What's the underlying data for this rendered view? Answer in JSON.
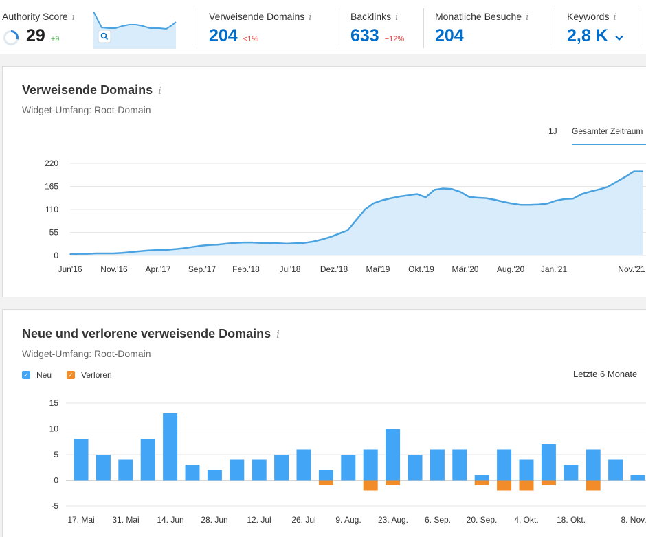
{
  "metrics": [
    {
      "label": "Authority Score",
      "value": "29",
      "delta": "+9"
    },
    {
      "label": "Verweisende Domains",
      "value": "204",
      "delta": "<1%"
    },
    {
      "label": "Backlinks",
      "value": "633",
      "delta": "−12%"
    },
    {
      "label": "Monatliche Besuche",
      "value": "204",
      "delta": ""
    },
    {
      "label": "Keywords",
      "value": "2,8 K",
      "delta": ""
    }
  ],
  "info_icon": "i",
  "icons": {
    "authority": "ring-icon",
    "zoom": "zoom-icon",
    "keywords_dropdown": "chevron-down-icon",
    "info": "info-icon"
  },
  "colors": {
    "accent": "#006dca",
    "line": "#4aa3e0",
    "area": "#d8ecfb",
    "new": "#42a5f5",
    "lost": "#f28c28",
    "negative": "#e53935",
    "positive": "#4caf50"
  },
  "card1": {
    "title": "Verweisende Domains",
    "subtitle": "Widget-Umfang: Root-Domain",
    "periods": [
      "1J",
      "Gesamter Zeitraum"
    ],
    "selected_period": "Gesamter Zeitraum"
  },
  "card2": {
    "title": "Neue und verlorene verweisende Domains",
    "subtitle": "Widget-Umfang: Root-Domain",
    "legend": [
      "Neu",
      "Verloren"
    ],
    "range_label": "Letzte 6 Monate"
  },
  "chart_data": [
    {
      "type": "area",
      "title": "Verweisende Domains",
      "x_tick_labels": [
        "Jun'16",
        "Nov.'16",
        "Apr.'17",
        "Sep.'17",
        "Feb.'18",
        "Jul'18",
        "Dez.'18",
        "Mai'19",
        "Okt.'19",
        "Mär.'20",
        "Aug.'20",
        "Jan.'21",
        "Nov.'21"
      ],
      "y_ticks": [
        0,
        55,
        110,
        165,
        220
      ],
      "ylim": [
        0,
        220
      ],
      "grid": true,
      "x": [
        "2016-06",
        "2016-07",
        "2016-08",
        "2016-09",
        "2016-10",
        "2016-11",
        "2016-12",
        "2017-01",
        "2017-02",
        "2017-03",
        "2017-04",
        "2017-05",
        "2017-06",
        "2017-07",
        "2017-08",
        "2017-09",
        "2017-10",
        "2017-11",
        "2017-12",
        "2018-01",
        "2018-02",
        "2018-03",
        "2018-04",
        "2018-05",
        "2018-06",
        "2018-07",
        "2018-08",
        "2018-09",
        "2018-10",
        "2018-11",
        "2018-12",
        "2019-01",
        "2019-02",
        "2019-03",
        "2019-04",
        "2019-05",
        "2019-06",
        "2019-07",
        "2019-08",
        "2019-09",
        "2019-10",
        "2019-11",
        "2019-12",
        "2020-01",
        "2020-02",
        "2020-03",
        "2020-04",
        "2020-05",
        "2020-06",
        "2020-07",
        "2020-08",
        "2020-09",
        "2020-10",
        "2020-11",
        "2020-12",
        "2021-01",
        "2021-02",
        "2021-03",
        "2021-04",
        "2021-05",
        "2021-06",
        "2021-07",
        "2021-08",
        "2021-09",
        "2021-10",
        "2021-11",
        "2021-12"
      ],
      "values": [
        3,
        4,
        4,
        5,
        5,
        5,
        6,
        8,
        10,
        12,
        13,
        13,
        15,
        17,
        20,
        23,
        25,
        26,
        28,
        30,
        31,
        31,
        30,
        30,
        29,
        28,
        29,
        30,
        33,
        38,
        44,
        52,
        60,
        85,
        110,
        125,
        132,
        137,
        141,
        144,
        147,
        139,
        157,
        160,
        159,
        152,
        140,
        138,
        137,
        133,
        128,
        124,
        121,
        121,
        122,
        124,
        131,
        135,
        136,
        147,
        153,
        158,
        164,
        176,
        188,
        201,
        201
      ]
    },
    {
      "type": "bar",
      "title": "Neue und verlorene verweisende Domains",
      "x_tick_labels": [
        "17. Mai",
        "31. Mai",
        "14. Jun",
        "28. Jun",
        "12. Jul",
        "26. Jul",
        "9. Aug.",
        "23. Aug.",
        "6. Sep.",
        "20. Sep.",
        "4. Okt.",
        "18. Okt.",
        "8. Nov."
      ],
      "y_ticks": [
        -5,
        0,
        5,
        10,
        15
      ],
      "ylim": [
        -5,
        15
      ],
      "grid": true,
      "legend_position": "top-left",
      "series": [
        {
          "name": "Neu",
          "values": [
            8,
            5,
            4,
            8,
            13,
            3,
            2,
            4,
            4,
            5,
            6,
            2,
            5,
            6,
            10,
            5,
            6,
            6,
            1,
            6,
            4,
            7,
            3,
            6,
            4,
            1
          ]
        },
        {
          "name": "Verloren",
          "values": [
            0,
            0,
            0,
            0,
            0,
            0,
            0,
            0,
            0,
            0,
            0,
            -1,
            0,
            -2,
            -1,
            0,
            0,
            0,
            -1,
            -2,
            -2,
            -1,
            0,
            -2,
            0,
            0
          ]
        }
      ]
    }
  ]
}
